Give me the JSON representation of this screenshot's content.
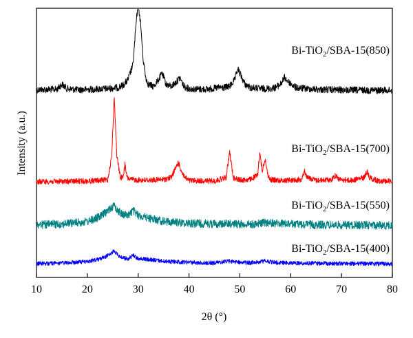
{
  "chart_data": {
    "type": "line",
    "title": "",
    "xlabel": "2θ (°)",
    "ylabel": "Intensity (a.u.)",
    "xlim": [
      10,
      80
    ],
    "xticks": [
      10,
      20,
      30,
      40,
      50,
      60,
      70,
      80
    ],
    "grid": false,
    "legend": "none",
    "y_units": "arbitrary",
    "series": [
      {
        "name": "Bi-TiO₂/SBA-15(850)",
        "label_prefix": "Bi-TiO",
        "label_sub": "2",
        "label_suffix": "/SBA-15(850)",
        "color": "#000000",
        "x": [
          10,
          14,
          15,
          16,
          18,
          20,
          22,
          24,
          26,
          27,
          28,
          29,
          29.5,
          30,
          30.5,
          31,
          31.5,
          32,
          33,
          34,
          34.7,
          35.5,
          36.5,
          37.5,
          38.2,
          39,
          40,
          42,
          44,
          46,
          47,
          48,
          49,
          49.6,
          50,
          51,
          52,
          54,
          56,
          57,
          58,
          58.8,
          59.6,
          61,
          63,
          66,
          70,
          75,
          80
        ],
        "values": [
          0.5,
          0.7,
          3,
          1,
          0.5,
          0.6,
          0.8,
          1,
          1.5,
          2.5,
          5,
          12,
          28,
          40,
          30,
          14,
          6,
          3,
          2,
          5,
          8,
          3,
          2,
          4,
          6,
          2,
          1,
          0.7,
          0.8,
          1.5,
          1.5,
          2,
          5,
          10,
          8,
          3,
          1.5,
          1,
          1,
          1.5,
          3,
          6,
          4,
          1.5,
          1,
          0.6,
          0.4,
          0.3,
          0.2
        ]
      },
      {
        "name": "Bi-TiO₂/SBA-15(700)",
        "label_prefix": "Bi-TiO",
        "label_sub": "2",
        "label_suffix": "/SBA-15(700)",
        "color": "#ff0000",
        "x": [
          10,
          20,
          24,
          24.8,
          25.3,
          25.8,
          26.5,
          27,
          27.4,
          27.8,
          28.5,
          30,
          32,
          35,
          36.5,
          37.3,
          37.9,
          38.5,
          39.2,
          40,
          45,
          47.3,
          48,
          48.7,
          50,
          52,
          53.5,
          53.9,
          54.4,
          55,
          55.5,
          56,
          58,
          62,
          62.7,
          63.3,
          65,
          68,
          68.8,
          69.6,
          72,
          74.5,
          75,
          75.5,
          77,
          80
        ],
        "values": [
          0,
          0.3,
          0.8,
          12,
          40,
          12,
          2,
          2,
          8,
          2,
          1,
          0.8,
          0.8,
          1,
          2,
          6,
          9,
          5,
          2,
          0.5,
          0.3,
          2,
          14,
          2,
          0.8,
          1,
          3,
          14,
          5,
          11,
          3,
          1,
          0.6,
          1,
          5,
          2,
          0.6,
          1,
          3,
          1,
          0.6,
          2,
          5,
          2,
          0.5,
          0.3
        ]
      },
      {
        "name": "Bi-TiO₂/SBA-15(550)",
        "label_prefix": "Bi-TiO",
        "label_sub": "2",
        "label_suffix": "/SBA-15(550)",
        "color": "#008080",
        "x": [
          10,
          15,
          20,
          22,
          23.5,
          24.5,
          25.3,
          26,
          27,
          28,
          29,
          30,
          32,
          35,
          40,
          45,
          48,
          52,
          55,
          60,
          65,
          70,
          75,
          80
        ],
        "values": [
          0,
          0.5,
          1.5,
          3,
          5,
          7,
          8,
          6,
          4.5,
          4,
          6,
          4,
          3,
          1.5,
          0.8,
          0.5,
          0.6,
          0.3,
          1,
          0.4,
          0.1,
          0,
          0,
          -0.2
        ]
      },
      {
        "name": "Bi-TiO₂/SBA-15(400)",
        "label_prefix": "Bi-TiO",
        "label_sub": "2",
        "label_suffix": "/SBA-15(400)",
        "color": "#0000ff",
        "x": [
          10,
          15,
          20,
          22,
          23.5,
          24.5,
          25.3,
          26,
          27,
          28,
          29,
          30,
          32,
          35,
          38,
          42,
          45,
          48,
          50,
          52,
          54,
          55,
          56,
          58,
          62,
          66,
          70,
          75,
          80
        ],
        "values": [
          0,
          0.3,
          1.2,
          2.5,
          4,
          6,
          8,
          5,
          3.5,
          3,
          5,
          3,
          2.5,
          1.5,
          1,
          0.5,
          0.5,
          1.5,
          0.8,
          0.5,
          1,
          1.8,
          1,
          0.5,
          0.3,
          0.2,
          0.1,
          0,
          -0.2
        ]
      }
    ]
  }
}
